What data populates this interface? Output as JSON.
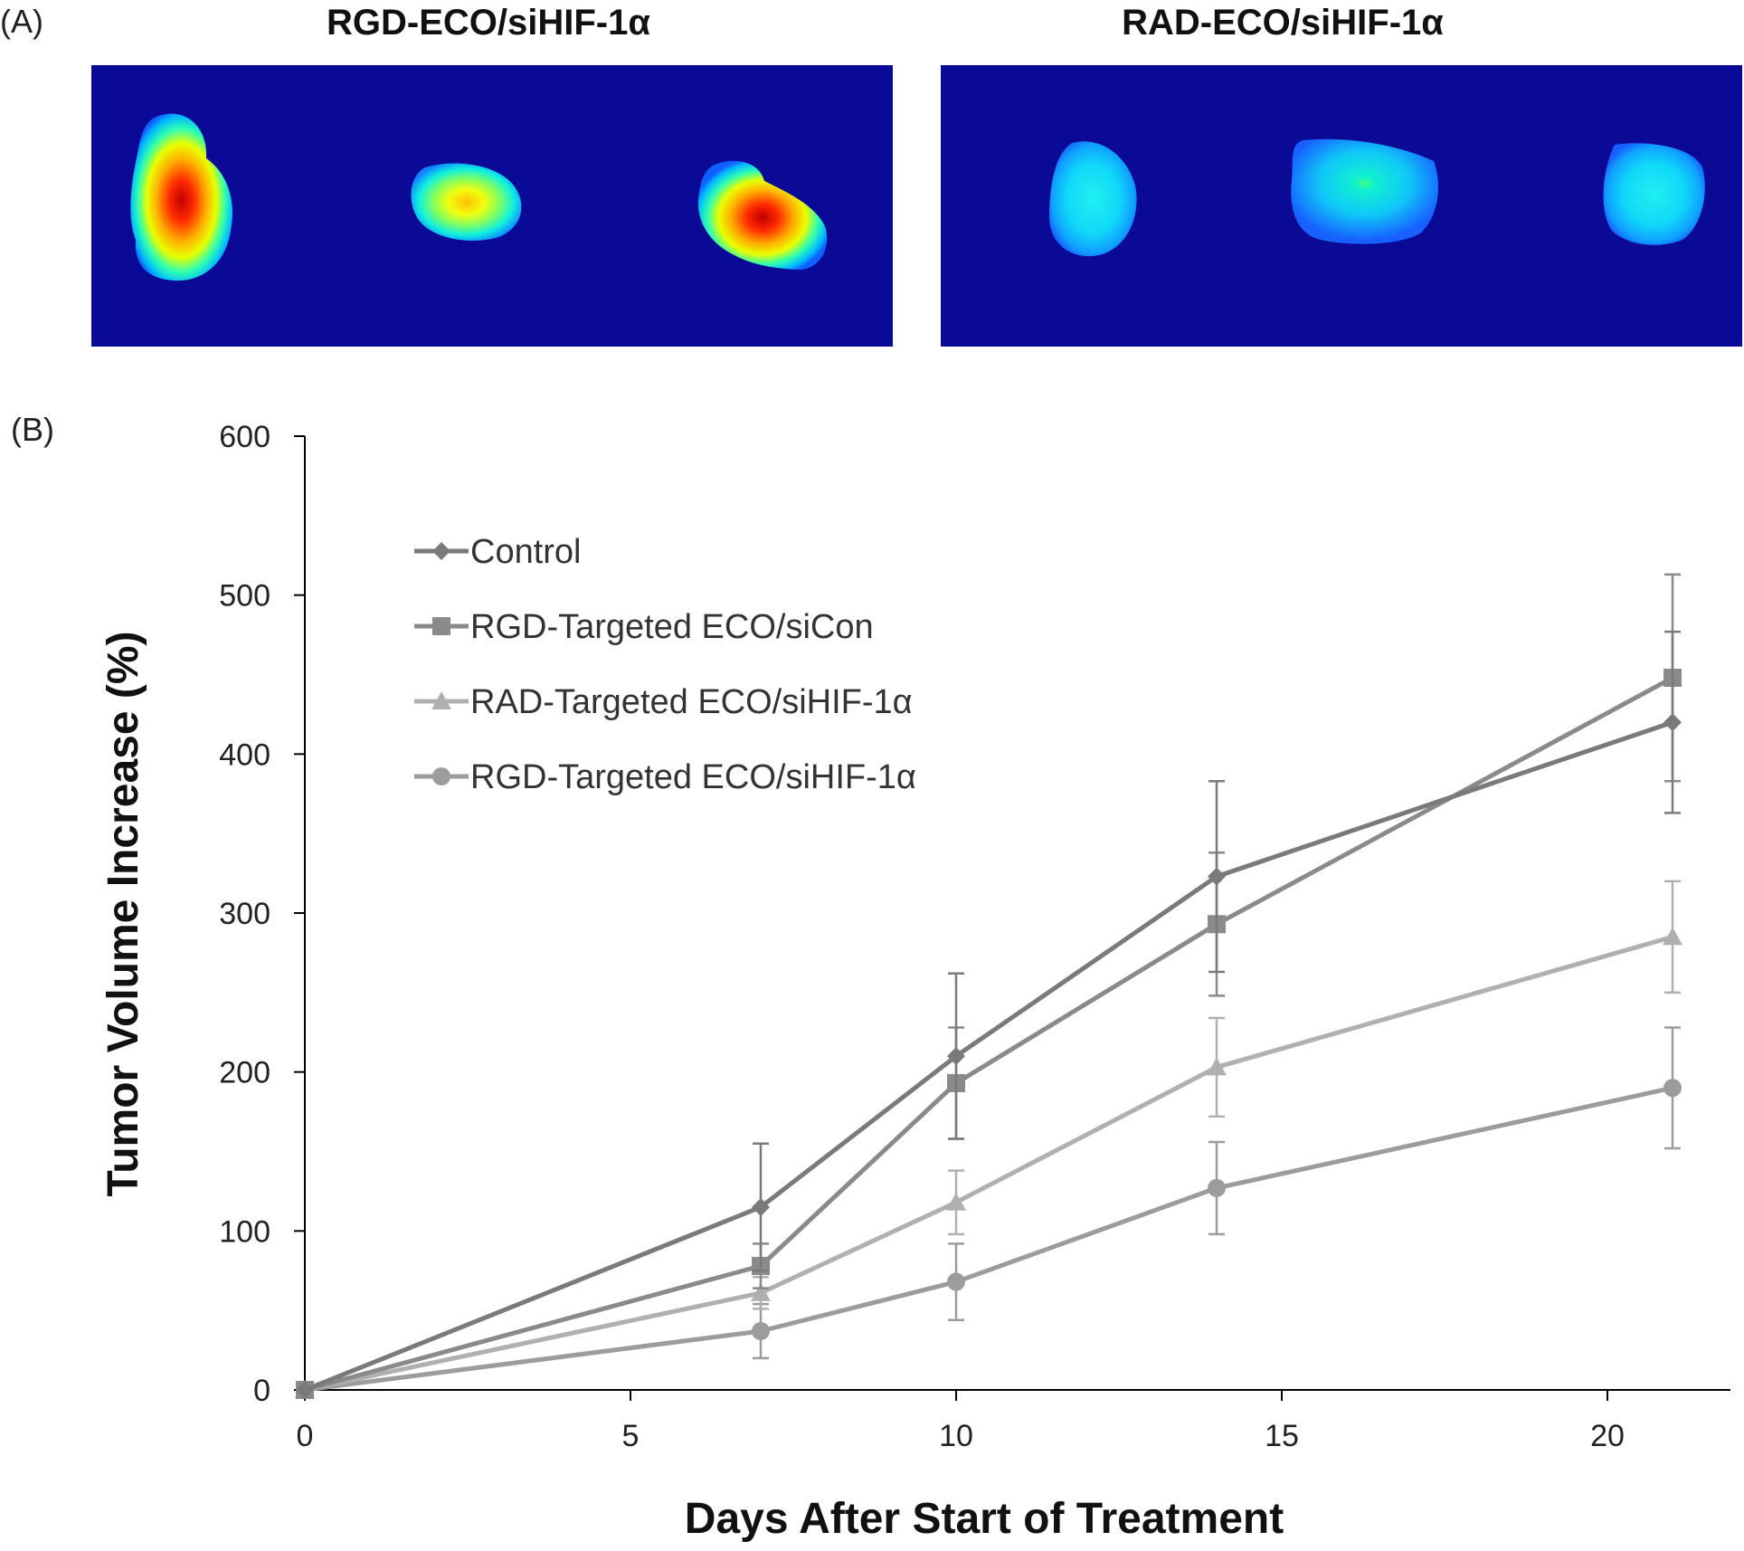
{
  "panel_a": {
    "label": "(A)",
    "left_title": "RGD-ECO/siHIF-1α",
    "right_title": "RAD-ECO/siHIF-1α"
  },
  "panel_b": {
    "label": "(B)"
  },
  "colors": {
    "background": "#ffffff",
    "heatmap_bg": "#0a0a96",
    "control": "#7a7a7a",
    "rgd_sicon": "#8a8a8a",
    "rad_sihif": "#b0b0b0",
    "rgd_sihif": "#9c9c9c"
  },
  "chart_data": {
    "type": "line",
    "title": "",
    "xlabel": "Days After Start of Treatment",
    "ylabel": "Tumor Volume Increase (%)",
    "xlim": [
      0,
      22
    ],
    "ylim": [
      0,
      600
    ],
    "xticks": [
      0,
      5,
      10,
      15,
      20
    ],
    "yticks": [
      0,
      100,
      200,
      300,
      400,
      500,
      600
    ],
    "x": [
      0,
      7,
      10,
      14,
      21
    ],
    "legend_position": "top-left",
    "series": [
      {
        "name": "Control",
        "marker": "diamond",
        "color": "#7a7a7a",
        "values": [
          0,
          115,
          210,
          323,
          420
        ],
        "errors": [
          0,
          40,
          52,
          60,
          57
        ]
      },
      {
        "name": "RGD-Targeted ECO/siCon",
        "marker": "square",
        "color": "#8a8a8a",
        "values": [
          0,
          78,
          193,
          293,
          448
        ],
        "errors": [
          0,
          14,
          35,
          45,
          65
        ]
      },
      {
        "name": "RAD-Targeted ECO/siHIF-1α",
        "marker": "triangle",
        "color": "#b0b0b0",
        "values": [
          0,
          61,
          118,
          203,
          285
        ],
        "errors": [
          0,
          10,
          20,
          31,
          35
        ]
      },
      {
        "name": "RGD-Targeted ECO/siHIF-1α",
        "marker": "circle",
        "color": "#9c9c9c",
        "values": [
          0,
          37,
          68,
          127,
          190
        ],
        "errors": [
          0,
          17,
          24,
          29,
          38
        ]
      }
    ]
  }
}
